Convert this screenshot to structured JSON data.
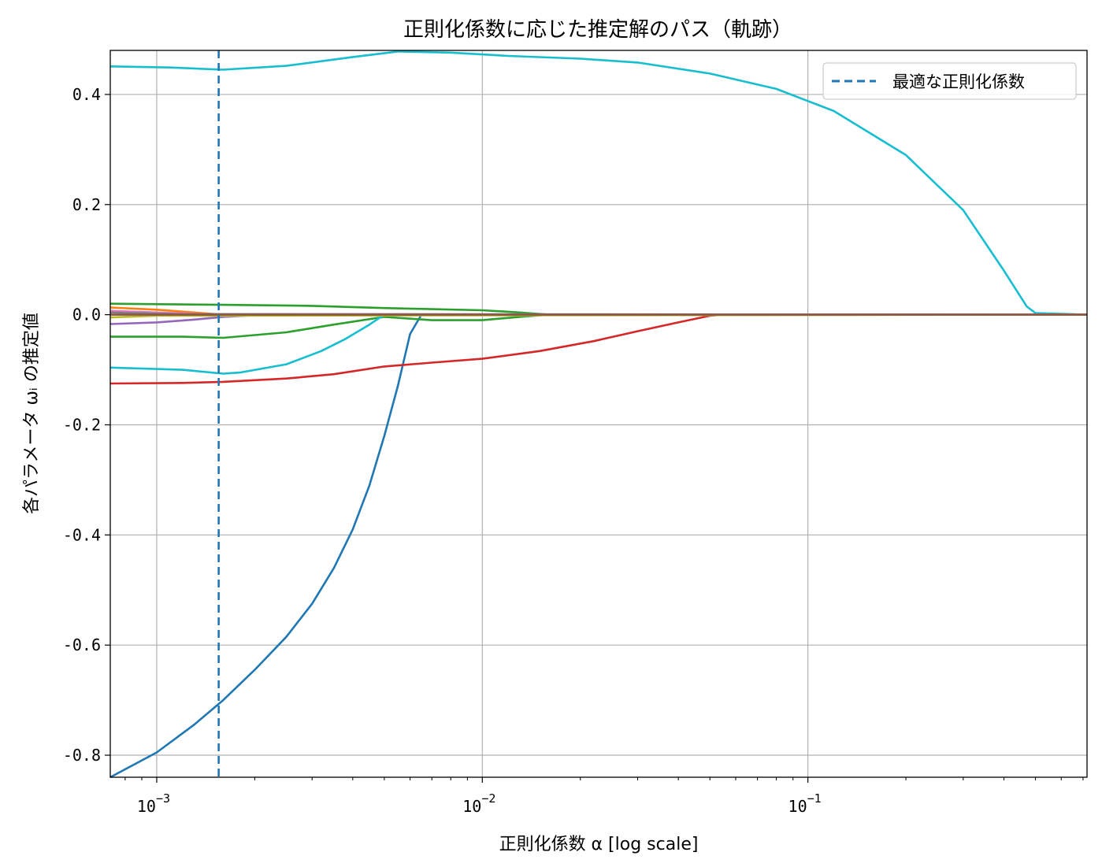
{
  "chart_data": {
    "type": "line",
    "title": "正則化係数に応じた推定解のパス（軌跡）",
    "xlabel": "正則化係数 α  [log scale]",
    "ylabel": "各パラメータ ωᵢ の推定値",
    "xscale": "log",
    "xlim": [
      0.00072,
      0.72
    ],
    "ylim": [
      -0.84,
      0.48
    ],
    "grid": true,
    "legend_position": "top-right",
    "x_ticks": [
      {
        "value": 0.001,
        "base": "10",
        "exp": "−3"
      },
      {
        "value": 0.01,
        "base": "10",
        "exp": "−2"
      },
      {
        "value": 0.1,
        "base": "10",
        "exp": "−1"
      }
    ],
    "y_ticks": [
      {
        "value": 0.4,
        "label": "0.4"
      },
      {
        "value": 0.2,
        "label": "0.2"
      },
      {
        "value": 0.0,
        "label": "0.0"
      },
      {
        "value": -0.2,
        "label": "-0.2"
      },
      {
        "value": -0.4,
        "label": "-0.4"
      },
      {
        "value": -0.6,
        "label": "-0.6"
      },
      {
        "value": -0.8,
        "label": "-0.8"
      }
    ],
    "optimal_alpha": {
      "name": "最適な正則化係数",
      "x": 0.00155,
      "color": "#1f77b4"
    },
    "series": [
      {
        "color": "#17becf",
        "x": [
          0.00072,
          0.0011,
          0.0016,
          0.0025,
          0.004,
          0.0055,
          0.008,
          0.012,
          0.02,
          0.03,
          0.05,
          0.08,
          0.12,
          0.2,
          0.3,
          0.4,
          0.47,
          0.5,
          0.72
        ],
        "y": [
          0.451,
          0.449,
          0.445,
          0.452,
          0.468,
          0.478,
          0.476,
          0.47,
          0.465,
          0.458,
          0.438,
          0.41,
          0.37,
          0.29,
          0.19,
          0.08,
          0.015,
          0.003,
          0.0
        ]
      },
      {
        "color": "#1f77b4",
        "x": [
          0.00072,
          0.001,
          0.0013,
          0.0016,
          0.002,
          0.0025,
          0.003,
          0.0035,
          0.004,
          0.0045,
          0.005,
          0.0055,
          0.006,
          0.0065
        ],
        "y": [
          -0.84,
          -0.795,
          -0.745,
          -0.7,
          -0.645,
          -0.585,
          -0.525,
          -0.46,
          -0.39,
          -0.31,
          -0.22,
          -0.13,
          -0.035,
          0.0
        ]
      },
      {
        "color": "#d62728",
        "x": [
          0.00072,
          0.0012,
          0.0016,
          0.0025,
          0.0035,
          0.005,
          0.007,
          0.01,
          0.015,
          0.022,
          0.03,
          0.04,
          0.05,
          0.055,
          0.72
        ],
        "y": [
          -0.125,
          -0.124,
          -0.122,
          -0.116,
          -0.108,
          -0.094,
          -0.087,
          -0.08,
          -0.066,
          -0.048,
          -0.03,
          -0.014,
          -0.002,
          0.0,
          0.0
        ]
      },
      {
        "color": "#2ca02c",
        "x": [
          0.00072,
          0.0012,
          0.0016,
          0.0025,
          0.0035,
          0.005,
          0.007,
          0.01,
          0.013,
          0.016,
          0.72
        ],
        "y": [
          -0.04,
          -0.04,
          -0.042,
          -0.032,
          -0.018,
          -0.004,
          -0.01,
          -0.01,
          -0.004,
          0.0,
          0.0
        ]
      },
      {
        "color": "#2ca02c",
        "x": [
          0.00072,
          0.0016,
          0.003,
          0.005,
          0.007,
          0.01,
          0.013,
          0.016,
          0.72
        ],
        "y": [
          0.02,
          0.018,
          0.016,
          0.012,
          0.01,
          0.008,
          0.004,
          0.0,
          0.0
        ]
      },
      {
        "color": "#17becf",
        "x": [
          0.00072,
          0.0012,
          0.0016,
          0.0018,
          0.0025,
          0.0032,
          0.0038,
          0.0045,
          0.005,
          0.72
        ],
        "y": [
          -0.096,
          -0.1,
          -0.107,
          -0.105,
          -0.09,
          -0.066,
          -0.044,
          -0.018,
          0.0,
          0.0
        ]
      },
      {
        "color": "#9467bd",
        "x": [
          0.00072,
          0.001,
          0.0013,
          0.0016,
          0.002,
          0.72
        ],
        "y": [
          -0.017,
          -0.014,
          -0.009,
          -0.004,
          -0.001,
          0.0
        ]
      },
      {
        "color": "#ff7f0e",
        "x": [
          0.00072,
          0.001,
          0.0013,
          0.0016,
          0.72
        ],
        "y": [
          0.013,
          0.009,
          0.004,
          0.0,
          0.0
        ]
      },
      {
        "color": "#e377c2",
        "x": [
          0.00072,
          0.001,
          0.0014,
          0.72
        ],
        "y": [
          0.007,
          0.004,
          0.001,
          0.0
        ]
      },
      {
        "color": "#7f7f7f",
        "x": [
          0.00072,
          0.0012,
          0.72
        ],
        "y": [
          0.004,
          0.001,
          0.0
        ]
      },
      {
        "color": "#bcbd22",
        "x": [
          0.00072,
          0.001,
          0.72
        ],
        "y": [
          -0.005,
          -0.002,
          0.0
        ]
      },
      {
        "color": "#8c564b",
        "x": [
          0.00072,
          0.72
        ],
        "y": [
          0.0,
          0.0
        ]
      }
    ]
  }
}
